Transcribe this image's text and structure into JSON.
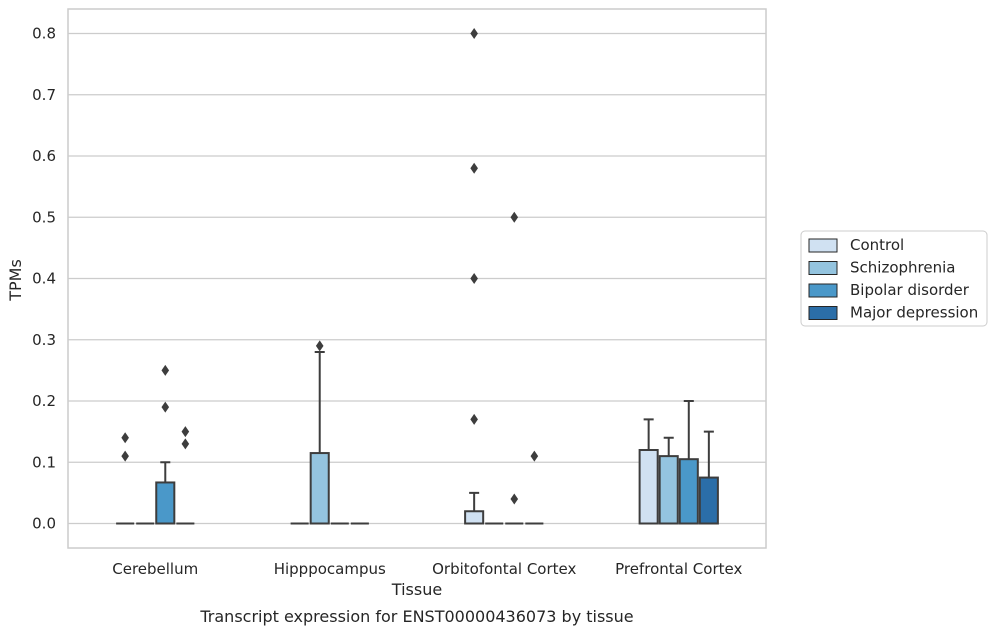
{
  "chart_data": {
    "type": "box",
    "xlabel": "Tissue",
    "ylabel": "TPMs",
    "caption": "Transcript expression for ENST00000436073 by tissue",
    "ylim": [
      -0.04,
      0.84
    ],
    "yticks": [
      0.0,
      0.1,
      0.2,
      0.3,
      0.4,
      0.5,
      0.6,
      0.7,
      0.8
    ],
    "ytick_labels": [
      "0.0",
      "0.1",
      "0.2",
      "0.3",
      "0.4",
      "0.5",
      "0.6",
      "0.7",
      "0.8"
    ],
    "grid": "horizontal",
    "legend_position": "right",
    "categories": [
      "Cerebellum",
      "Hipppocampus",
      "Orbitofontal Cortex",
      "Prefrontal Cortex"
    ],
    "series": [
      {
        "name": "Control",
        "color": "#d0e1f2",
        "boxes": [
          {
            "q1": 0.0,
            "median": 0.0,
            "q3": 0.0,
            "whisker_low": 0.0,
            "whisker_high": 0.0,
            "outliers": [
              0.11,
              0.14
            ]
          },
          {
            "q1": 0.0,
            "median": 0.0,
            "q3": 0.0,
            "whisker_low": 0.0,
            "whisker_high": 0.0,
            "outliers": []
          },
          {
            "q1": 0.0,
            "median": 0.0,
            "q3": 0.02,
            "whisker_low": 0.0,
            "whisker_high": 0.05,
            "outliers": [
              0.17,
              0.4,
              0.58,
              0.8
            ]
          },
          {
            "q1": 0.0,
            "median": 0.0,
            "q3": 0.12,
            "whisker_low": 0.0,
            "whisker_high": 0.17,
            "outliers": []
          }
        ]
      },
      {
        "name": "Schizophrenia",
        "color": "#94c4df",
        "boxes": [
          {
            "q1": 0.0,
            "median": 0.0,
            "q3": 0.0,
            "whisker_low": 0.0,
            "whisker_high": 0.0,
            "outliers": []
          },
          {
            "q1": 0.0,
            "median": 0.0,
            "q3": 0.115,
            "whisker_low": 0.0,
            "whisker_high": 0.28,
            "outliers": [
              0.29
            ]
          },
          {
            "q1": 0.0,
            "median": 0.0,
            "q3": 0.0,
            "whisker_low": 0.0,
            "whisker_high": 0.0,
            "outliers": []
          },
          {
            "q1": 0.0,
            "median": 0.0,
            "q3": 0.11,
            "whisker_low": 0.0,
            "whisker_high": 0.14,
            "outliers": []
          }
        ]
      },
      {
        "name": "Bipolar disorder",
        "color": "#4a98c9",
        "boxes": [
          {
            "q1": 0.0,
            "median": 0.0,
            "q3": 0.067,
            "whisker_low": 0.0,
            "whisker_high": 0.1,
            "outliers": [
              0.19,
              0.25
            ]
          },
          {
            "q1": 0.0,
            "median": 0.0,
            "q3": 0.0,
            "whisker_low": 0.0,
            "whisker_high": 0.0,
            "outliers": []
          },
          {
            "q1": 0.0,
            "median": 0.0,
            "q3": 0.0,
            "whisker_low": 0.0,
            "whisker_high": 0.0,
            "outliers": [
              0.04,
              0.5
            ]
          },
          {
            "q1": 0.0,
            "median": 0.0,
            "q3": 0.105,
            "whisker_low": 0.0,
            "whisker_high": 0.2,
            "outliers": []
          }
        ]
      },
      {
        "name": "Major depression",
        "color": "#2b6ea8",
        "boxes": [
          {
            "q1": 0.0,
            "median": 0.0,
            "q3": 0.0,
            "whisker_low": 0.0,
            "whisker_high": 0.0,
            "outliers": [
              0.13,
              0.15
            ]
          },
          {
            "q1": 0.0,
            "median": 0.0,
            "q3": 0.0,
            "whisker_low": 0.0,
            "whisker_high": 0.0,
            "outliers": []
          },
          {
            "q1": 0.0,
            "median": 0.0,
            "q3": 0.0,
            "whisker_low": 0.0,
            "whisker_high": 0.0,
            "outliers": [
              0.11
            ]
          },
          {
            "q1": 0.0,
            "median": 0.0,
            "q3": 0.075,
            "whisker_low": 0.0,
            "whisker_high": 0.15,
            "outliers": []
          }
        ]
      }
    ]
  }
}
